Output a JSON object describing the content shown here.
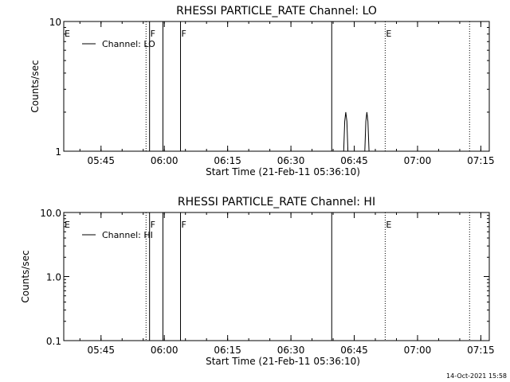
{
  "footer": {
    "date": "14-Oct-2021 15:58"
  },
  "chart_data": [
    {
      "type": "line",
      "title": "RHESSI PARTICLE_RATE Channel: LO",
      "xlabel": "Start Time (21-Feb-11 05:36:10)",
      "ylabel": "Counts/sec",
      "yscale": "log",
      "xlim": [
        "05:36:10",
        "07:17:00"
      ],
      "ylim": [
        1,
        10
      ],
      "x_ticks": [
        "05:45",
        "06:00",
        "06:15",
        "06:30",
        "06:45",
        "07:00",
        "07:15"
      ],
      "y_ticks": [
        "1",
        "10"
      ],
      "series": [
        {
          "name": "Channel: LO",
          "x": [
            "06:42:30",
            "06:42:45",
            "06:43:00",
            "06:43:15",
            "06:43:30",
            "06:47:30",
            "06:47:45",
            "06:48:00",
            "06:48:15",
            "06:48:30"
          ],
          "values": [
            1,
            1.7,
            2,
            1.7,
            1,
            1,
            1.7,
            2,
            1.7,
            1
          ]
        }
      ],
      "markers": [
        {
          "x": "05:36:10",
          "label": "E",
          "style": "solid"
        },
        {
          "x": "05:55:40",
          "label": "",
          "style": "dotted"
        },
        {
          "x": "05:56:30",
          "label": "F",
          "style": "solid"
        },
        {
          "x": "05:59:40",
          "label": "",
          "style": "solid"
        },
        {
          "x": "06:03:50",
          "label": "F",
          "style": "solid"
        },
        {
          "x": "06:39:40",
          "label": "",
          "style": "solid"
        },
        {
          "x": "06:52:20",
          "label": "E",
          "style": "dotted"
        },
        {
          "x": "07:12:20",
          "label": "",
          "style": "dotted"
        }
      ],
      "legend": "upper-left"
    },
    {
      "type": "line",
      "title": "RHESSI PARTICLE_RATE Channel: HI",
      "xlabel": "Start Time (21-Feb-11 05:36:10)",
      "ylabel": "Counts/sec",
      "yscale": "log",
      "xlim": [
        "05:36:10",
        "07:17:00"
      ],
      "ylim": [
        0.1,
        10
      ],
      "x_ticks": [
        "05:45",
        "06:00",
        "06:15",
        "06:30",
        "06:45",
        "07:00",
        "07:15"
      ],
      "y_ticks": [
        "0.1",
        "1.0",
        "10.0"
      ],
      "series": [
        {
          "name": "Channel: HI",
          "x": [],
          "values": []
        }
      ],
      "markers": [
        {
          "x": "05:36:10",
          "label": "E",
          "style": "solid"
        },
        {
          "x": "05:55:40",
          "label": "",
          "style": "dotted"
        },
        {
          "x": "05:56:30",
          "label": "F",
          "style": "solid"
        },
        {
          "x": "05:59:40",
          "label": "",
          "style": "solid"
        },
        {
          "x": "06:03:50",
          "label": "F",
          "style": "solid"
        },
        {
          "x": "06:39:40",
          "label": "",
          "style": "solid"
        },
        {
          "x": "06:52:20",
          "label": "E",
          "style": "dotted"
        },
        {
          "x": "07:12:20",
          "label": "",
          "style": "dotted"
        }
      ],
      "legend": "upper-left"
    }
  ]
}
